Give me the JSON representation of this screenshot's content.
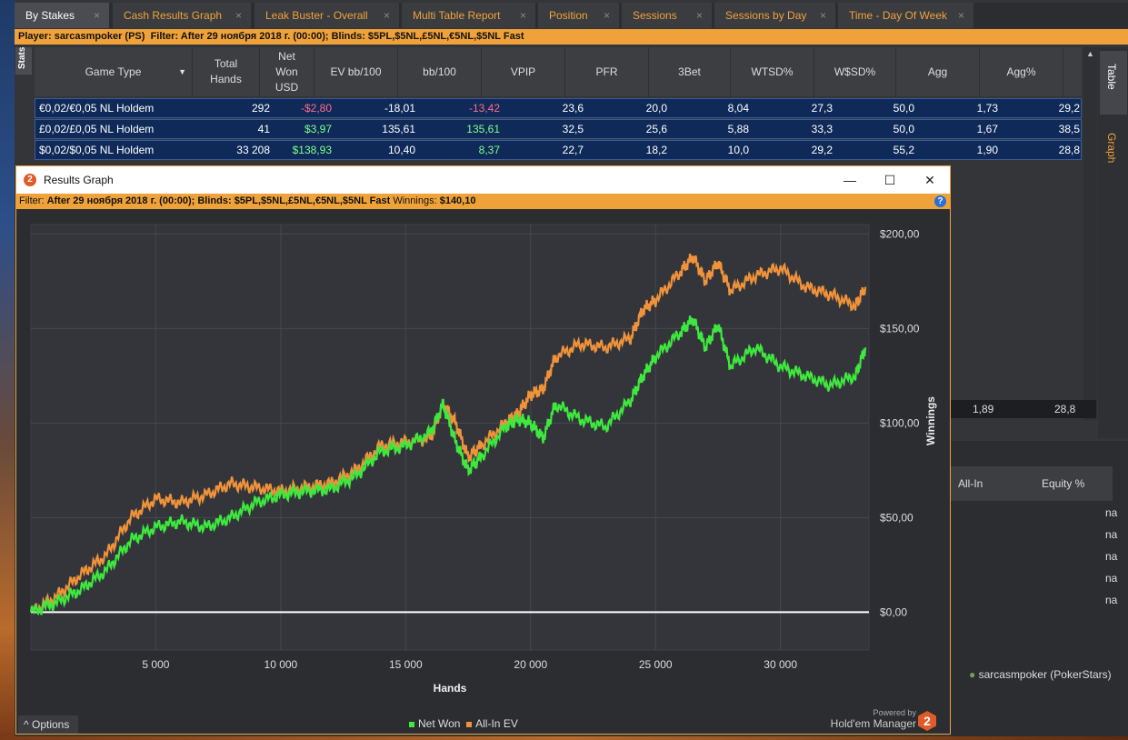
{
  "tabs": [
    {
      "label": "By Stakes",
      "active": true
    },
    {
      "label": "Cash Results Graph"
    },
    {
      "label": "Leak Buster - Overall"
    },
    {
      "label": "Multi Table Report"
    },
    {
      "label": "Position"
    },
    {
      "label": "Sessions"
    },
    {
      "label": "Sessions by Day"
    },
    {
      "label": "Time - Day Of Week"
    }
  ],
  "tab_close": "×",
  "filterbar": {
    "player_label": "Player:",
    "player": "sarcasmpoker (PS)",
    "filter_label": "Filter:",
    "filter": "After 29 ноября 2018 г. (00:00); Blinds: $5PL,$5NL,£5NL,€5NL,$5NL Fast"
  },
  "stats_vtab": "Stats",
  "right_tabs": {
    "table": "Table",
    "graph": "Graph"
  },
  "columns": [
    "Game Type",
    "Total Hands",
    "Net Won USD",
    "EV bb/100",
    "bb/100",
    "VPIP",
    "PFR",
    "3Bet",
    "WTSD%",
    "W$SD%",
    "Agg",
    "Agg%"
  ],
  "rows": [
    {
      "game": "€0,02/€0,05 NL Holdem",
      "hands": "292",
      "net": "-$2,80",
      "ev": "-18,01",
      "bb": "-13,42",
      "vpip": "23,6",
      "pfr": "20,0",
      "threebet": "8,04",
      "wtsd": "27,3",
      "wssd": "50,0",
      "agg": "1,73",
      "aggp": "29,2"
    },
    {
      "game": "£0,02/£0,05 NL Holdem",
      "hands": "41",
      "net": "$3,97",
      "ev": "135,61",
      "bb": "135,61",
      "vpip": "32,5",
      "pfr": "25,6",
      "threebet": "5,88",
      "wtsd": "33,3",
      "wssd": "50,0",
      "agg": "1,67",
      "aggp": "38,5"
    },
    {
      "game": "$0,02/$0,05 NL Holdem",
      "hands": "33 208",
      "net": "$138,93",
      "ev": "10,40",
      "bb": "8,37",
      "vpip": "22,7",
      "pfr": "18,2",
      "threebet": "10,0",
      "wtsd": "29,2",
      "wssd": "55,2",
      "agg": "1,90",
      "aggp": "28,8"
    }
  ],
  "bg_row": {
    "agg": "1,89",
    "aggp": "28,8"
  },
  "lower_panel": {
    "col1": "All-In",
    "col2": "Equity %",
    "values": [
      "na",
      "na",
      "na",
      "na",
      "na"
    ]
  },
  "player_tag": "sarcasmpoker (PokerStars)",
  "graph_window": {
    "title": "Results Graph",
    "filter_label": "Filter:",
    "filter": "After 29 ноября 2018 г. (00:00); Blinds: $5PL,$5NL,£5NL,€5NL,$5NL Fast",
    "winnings_label": "Winnings:",
    "winnings": "$140,10",
    "options": "Options",
    "powered1": "Powered by",
    "powered2": "Hold'em Manager"
  },
  "chart_data": {
    "type": "line",
    "title": "",
    "xlabel": "Hands",
    "ylabel": "Winnings",
    "xlim": [
      0,
      33541
    ],
    "ylim": [
      -20,
      205
    ],
    "xticks": [
      5000,
      10000,
      15000,
      20000,
      25000,
      30000
    ],
    "xtick_labels": [
      "5 000",
      "10 000",
      "15 000",
      "20 000",
      "25 000",
      "30 000"
    ],
    "yticks": [
      0,
      50,
      100,
      150,
      200
    ],
    "ytick_labels": [
      "$0,00",
      "$50,00",
      "$100,00",
      "$150,00",
      "$200,00"
    ],
    "grid": true,
    "legend": "bottom",
    "series": [
      {
        "name": "Net Won",
        "color": "#3ee83e",
        "x": [
          0,
          1000,
          2000,
          3000,
          4000,
          5000,
          6000,
          7000,
          8000,
          9000,
          10000,
          11000,
          12000,
          13000,
          14000,
          15000,
          16000,
          16500,
          17000,
          17500,
          18000,
          19000,
          19500,
          20000,
          20500,
          21000,
          22000,
          23000,
          24000,
          24500,
          25000,
          26000,
          26500,
          27000,
          27500,
          28000,
          29000,
          30000,
          31000,
          32000,
          33000,
          33400
        ],
        "y": [
          0,
          5,
          12,
          22,
          38,
          45,
          48,
          45,
          50,
          58,
          62,
          64,
          65,
          72,
          85,
          88,
          95,
          110,
          90,
          75,
          82,
          98,
          102,
          100,
          92,
          110,
          102,
          98,
          112,
          125,
          135,
          148,
          155,
          140,
          152,
          130,
          140,
          130,
          125,
          120,
          125,
          140
        ]
      },
      {
        "name": "All-In EV",
        "color": "#f0923a",
        "x": [
          0,
          1000,
          2000,
          3000,
          4000,
          5000,
          6000,
          7000,
          8000,
          9000,
          10000,
          11000,
          12000,
          13000,
          14000,
          15000,
          16000,
          16500,
          17000,
          17500,
          18000,
          19000,
          19500,
          20000,
          20500,
          21000,
          22000,
          23000,
          24000,
          24500,
          25000,
          26000,
          26500,
          27000,
          27500,
          28000,
          29000,
          30000,
          31000,
          32000,
          33000,
          33400
        ],
        "y": [
          0,
          8,
          20,
          30,
          50,
          60,
          58,
          62,
          68,
          66,
          64,
          66,
          68,
          75,
          88,
          90,
          92,
          110,
          100,
          82,
          88,
          100,
          105,
          115,
          118,
          135,
          142,
          140,
          145,
          160,
          165,
          180,
          188,
          175,
          185,
          170,
          178,
          182,
          172,
          168,
          162,
          172
        ]
      }
    ]
  }
}
